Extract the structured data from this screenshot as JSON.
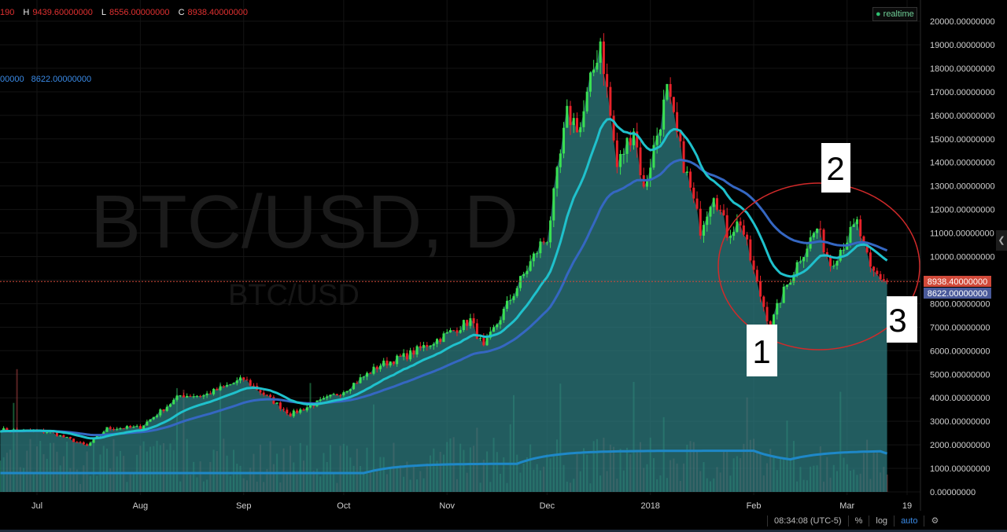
{
  "ohlc": {
    "open_fragment": "190",
    "high_label": "H",
    "high": "9439.60000000",
    "low_label": "L",
    "low": "8556.00000000",
    "close_label": "C",
    "close": "8938.40000000"
  },
  "ma_legend": {
    "fragment": "00000",
    "value": "8622.00000000"
  },
  "realtime_label": "realtime",
  "watermark": {
    "main": "BTC/USD, D",
    "sub": "BTC/USD"
  },
  "price_labels": {
    "last": "8938.40000000",
    "ma": "8622.00000000"
  },
  "annotations": [
    "1",
    "2",
    "3"
  ],
  "toolbar": {
    "time": "08:34:08 (UTC-5)",
    "percent": "%",
    "log": "log",
    "auto": "auto"
  },
  "colors": {
    "background": "#000000",
    "bull": "#3ae052",
    "bear": "#e8222a",
    "area": "#2f7f84",
    "ma_fast": "#1fc1cc",
    "ma_slow": "#3567c2",
    "volume_ma": "#1e88c8",
    "annotation_circle": "#d22a2a",
    "last_price": "#d24a3a",
    "ma_price": "#4a5a9a"
  },
  "chart_data": {
    "type": "candlestick",
    "symbol": "BTC/USD",
    "interval": "D",
    "ylim": [
      0,
      20000
    ],
    "y_ticks": [
      "0.00000000",
      "1000.00000000",
      "2000.00000000",
      "3000.00000000",
      "4000.00000000",
      "5000.00000000",
      "6000.00000000",
      "7000.00000000",
      "8000.00000000",
      "9000.00000000",
      "10000.00000000",
      "11000.00000000",
      "12000.00000000",
      "13000.00000000",
      "14000.00000000",
      "15000.00000000",
      "16000.00000000",
      "17000.00000000",
      "18000.00000000",
      "19000.00000000",
      "20000.00000000"
    ],
    "x_ticks": [
      {
        "date": "2017-07-01",
        "label": "Jul"
      },
      {
        "date": "2017-08-01",
        "label": "Aug"
      },
      {
        "date": "2017-09-01",
        "label": "Sep"
      },
      {
        "date": "2017-10-01",
        "label": "Oct"
      },
      {
        "date": "2017-11-01",
        "label": "Nov"
      },
      {
        "date": "2017-12-01",
        "label": "Dec"
      },
      {
        "date": "2018-01-01",
        "label": "2018"
      },
      {
        "date": "2018-02-01",
        "label": "Feb"
      },
      {
        "date": "2018-03-01",
        "label": "Mar"
      },
      {
        "date": "2018-03-19",
        "label": "19"
      }
    ],
    "price_keypoints": [
      [
        "2017-06-20",
        2650
      ],
      [
        "2017-07-05",
        2550
      ],
      [
        "2017-07-16",
        1950
      ],
      [
        "2017-07-22",
        2700
      ],
      [
        "2017-08-01",
        2750
      ],
      [
        "2017-08-13",
        4100
      ],
      [
        "2017-08-20",
        4100
      ],
      [
        "2017-09-01",
        4800
      ],
      [
        "2017-09-15",
        3300
      ],
      [
        "2017-09-25",
        3900
      ],
      [
        "2017-10-01",
        4300
      ],
      [
        "2017-10-12",
        5400
      ],
      [
        "2017-10-20",
        5800
      ],
      [
        "2017-11-01",
        6700
      ],
      [
        "2017-11-08",
        7300
      ],
      [
        "2017-11-12",
        6100
      ],
      [
        "2017-11-20",
        8200
      ],
      [
        "2017-11-29",
        10500
      ],
      [
        "2017-12-01",
        10800
      ],
      [
        "2017-12-07",
        16000
      ],
      [
        "2017-12-11",
        15500
      ],
      [
        "2017-12-17",
        19200
      ],
      [
        "2017-12-22",
        13800
      ],
      [
        "2017-12-27",
        15500
      ],
      [
        "2017-12-30",
        12800
      ],
      [
        "2018-01-06",
        17000
      ],
      [
        "2018-01-10",
        14500
      ],
      [
        "2018-01-16",
        11200
      ],
      [
        "2018-01-20",
        12800
      ],
      [
        "2018-01-24",
        11000
      ],
      [
        "2018-01-28",
        11500
      ],
      [
        "2018-02-02",
        8800
      ],
      [
        "2018-02-06",
        7000
      ],
      [
        "2018-02-09",
        8200
      ],
      [
        "2018-02-15",
        10000
      ],
      [
        "2018-02-20",
        11200
      ],
      [
        "2018-02-24",
        9700
      ],
      [
        "2018-03-04",
        11400
      ],
      [
        "2018-03-08",
        9400
      ],
      [
        "2018-03-13",
        8938.4
      ]
    ],
    "last_price": 8938.4,
    "ma_value": 8622
  }
}
